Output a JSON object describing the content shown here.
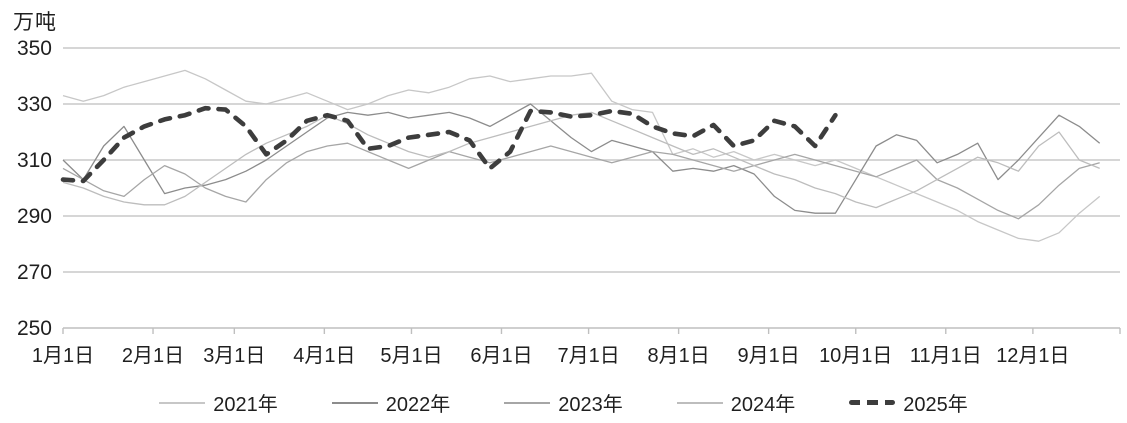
{
  "colors": {
    "background": "#ffffff",
    "grid": "#c9c9c9",
    "axis": "#bfbfbf",
    "text": "#1f1f1f"
  },
  "chart_data": {
    "type": "line",
    "title": "",
    "ylabel": "万吨",
    "xlabel": "",
    "ylim": [
      250,
      350
    ],
    "y_ticks": [
      250,
      270,
      290,
      310,
      330,
      350
    ],
    "grid": true,
    "legend_position": "bottom",
    "x_axis": {
      "kind": "day-of-year, weekly data points (day = 1 + 7 * index)",
      "tick_labels": [
        "1月1日",
        "2月1日",
        "3月1日",
        "4月1日",
        "5月1日",
        "6月1日",
        "7月1日",
        "8月1日",
        "9月1日",
        "10月1日",
        "11月1日",
        "12月1日"
      ],
      "tick_day_of_year": [
        1,
        32,
        60,
        91,
        121,
        152,
        182,
        213,
        244,
        274,
        305,
        335
      ]
    },
    "series": [
      {
        "name": "2021年",
        "color": "#c7c7c7",
        "style": "solid",
        "stroke_width": 1.3,
        "values": [
          333,
          331,
          333,
          336,
          338,
          340,
          342,
          339,
          335,
          331,
          330,
          332,
          334,
          331,
          328,
          330,
          333,
          335,
          334,
          336,
          339,
          340,
          338,
          339,
          340,
          340,
          341,
          331,
          328,
          327,
          312,
          314,
          311,
          313,
          310,
          312,
          310,
          308,
          310,
          307,
          304,
          301,
          298,
          295,
          292,
          288,
          285,
          282,
          281,
          284,
          291,
          297
        ]
      },
      {
        "name": "2022年",
        "color": "#8c8c8c",
        "style": "solid",
        "stroke_width": 1.3,
        "values": [
          310,
          303,
          315,
          322,
          310,
          298,
          300,
          301,
          303,
          306,
          310,
          315,
          320,
          325,
          327,
          326,
          327,
          325,
          326,
          327,
          325,
          322,
          326,
          330,
          324,
          318,
          313,
          317,
          315,
          313,
          306,
          307,
          306,
          308,
          305,
          297,
          292,
          291,
          291,
          303,
          315,
          319,
          317,
          309,
          312,
          316,
          303,
          310,
          318,
          326,
          322,
          316
        ]
      },
      {
        "name": "2023年",
        "color": "#a6a6a6",
        "style": "solid",
        "stroke_width": 1.3,
        "values": [
          307,
          303,
          299,
          297,
          303,
          308,
          305,
          300,
          297,
          295,
          303,
          309,
          313,
          315,
          316,
          313,
          310,
          307,
          310,
          313,
          311,
          309,
          311,
          313,
          315,
          313,
          311,
          309,
          311,
          313,
          312,
          310,
          308,
          306,
          308,
          310,
          312,
          310,
          308,
          306,
          304,
          307,
          310,
          303,
          300,
          296,
          292,
          289,
          294,
          301,
          307,
          309
        ]
      },
      {
        "name": "2024年",
        "color": "#bdbdbd",
        "style": "solid",
        "stroke_width": 1.3,
        "values": [
          302,
          300,
          297,
          295,
          294,
          294,
          297,
          302,
          307,
          312,
          316,
          319,
          322,
          326,
          323,
          319,
          316,
          313,
          311,
          313,
          316,
          318,
          320,
          322,
          324,
          326,
          327,
          324,
          321,
          318,
          315,
          312,
          314,
          311,
          308,
          305,
          303,
          300,
          298,
          295,
          293,
          296,
          299,
          303,
          307,
          311,
          309,
          306,
          315,
          320,
          310,
          307
        ]
      },
      {
        "name": "2025年",
        "color": "#3d3d3d",
        "style": "dashed",
        "stroke_width": 4.6,
        "values": [
          303,
          302.5,
          310,
          318,
          322,
          324.5,
          326,
          328.5,
          328,
          322,
          312,
          317,
          324,
          326,
          324,
          314,
          315,
          318,
          319,
          320,
          317,
          307,
          313,
          327.5,
          327,
          325.5,
          326,
          327.5,
          326.5,
          322,
          319.5,
          318.5,
          322.5,
          315,
          317,
          324,
          322,
          315,
          326
        ]
      }
    ]
  }
}
